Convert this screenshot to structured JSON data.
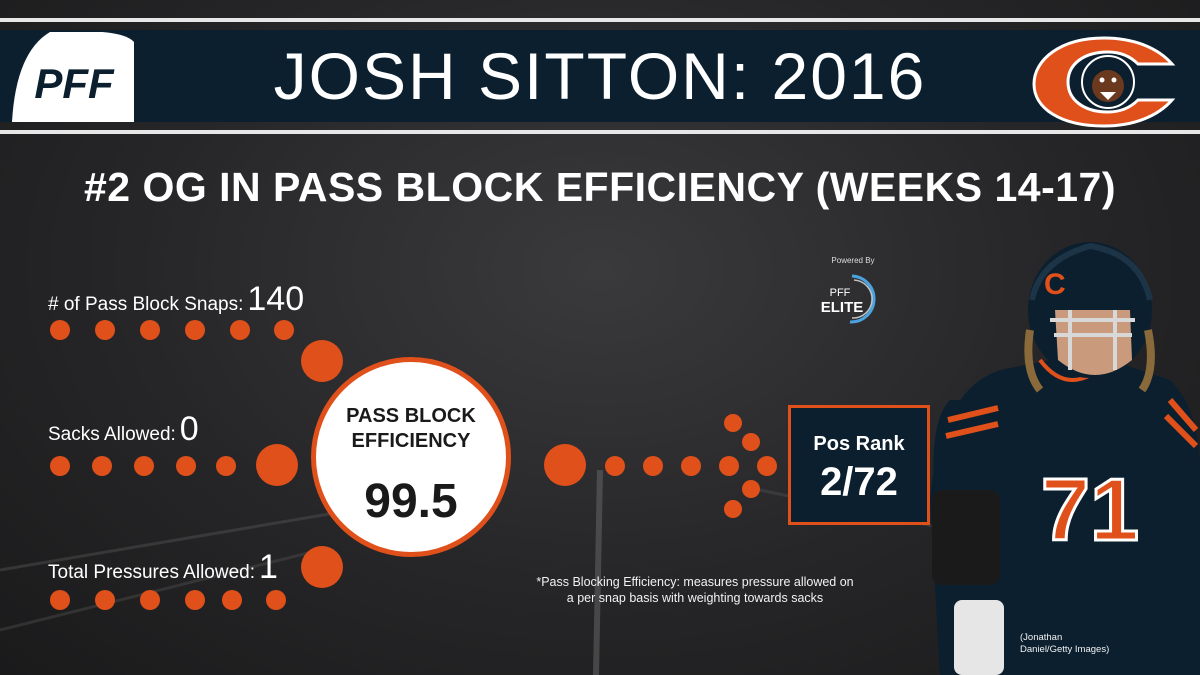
{
  "header": {
    "title": "JOSH SITTON: 2016",
    "pff_logo_text": "PFF",
    "team_logo": "bears-logo-icon"
  },
  "subtitle": "#2 OG IN PASS BLOCK EFFICIENCY (WEEKS 14-17)",
  "powered_by": {
    "label": "Powered By",
    "logo_line1": "PFF",
    "logo_line2": "ELITE"
  },
  "stats": [
    {
      "label": "# of Pass Block Snaps:",
      "value": "140"
    },
    {
      "label": "Sacks Allowed:",
      "value": "0"
    },
    {
      "label": "Total Pressures Allowed:",
      "value": "1"
    }
  ],
  "center": {
    "title_line1": "PASS BLOCK",
    "title_line2": "EFFICIENCY",
    "value": "99.5"
  },
  "rank": {
    "label": "Pos Rank",
    "value": "2/72"
  },
  "footnote": {
    "line1": "*Pass Blocking Efficiency: measures pressure allowed on",
    "line2": "a per snap basis with weighting towards sacks"
  },
  "photo_credit": {
    "line1": "(Jonathan",
    "line2": "Daniel/Getty Images)"
  },
  "player_jersey_number": "71",
  "colors": {
    "navy": "#0b1f2e",
    "orange": "#e0501b",
    "background": "#2a2a2c"
  }
}
